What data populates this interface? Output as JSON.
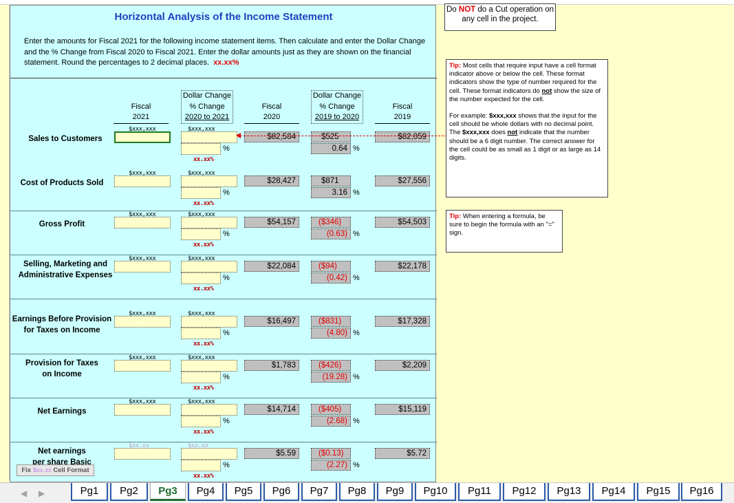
{
  "title": "Horizontal Analysis of the Income Statement",
  "instructions": "Enter the amounts for Fiscal 2021 for the following income statement items.  Then calculate and enter the Dollar Change and the % Change from Fiscal 2020 to Fiscal 2021.  Enter the dollar amounts just as they are shown on the financial statement.  Round the percentages to 2 decimal places.",
  "instructions_pct": "xx.xx%",
  "headers": {
    "fiscal2021": [
      "Fiscal",
      "2021"
    ],
    "dc1": [
      "Dollar Change",
      "% Change",
      "2020 to 2021"
    ],
    "fiscal2020": [
      "Fiscal",
      "2020"
    ],
    "dc2": [
      "Dollar Change",
      "% Change",
      "2019 to 2020"
    ],
    "fiscal2019": [
      "Fiscal",
      "2019"
    ]
  },
  "formats": {
    "dollar": "$xxx,xxx",
    "pct": "xx.xx%",
    "pct_sign": "%"
  },
  "rows": [
    {
      "label": [
        "Sales to Customers"
      ],
      "f2020": "$82,584",
      "chg": "$525",
      "pct": "0.64",
      "f2019": "$82,059",
      "neg": false
    },
    {
      "label": [
        "Cost of Products Sold"
      ],
      "f2020": "$28,427",
      "chg": "$871",
      "pct": "3.16",
      "f2019": "$27,556",
      "neg": false
    },
    {
      "label": [
        "Gross Profit"
      ],
      "f2020": "$54,157",
      "chg": "($346)",
      "pct": "(0.63)",
      "f2019": "$54,503",
      "neg": true
    },
    {
      "label": [
        "Selling, Marketing and",
        "Administrative Expenses"
      ],
      "f2020": "$22,084",
      "chg": "($94)",
      "pct": "(0.42)",
      "f2019": "$22,178",
      "neg": true
    },
    {
      "label": [
        "Earnings Before Provision",
        "for Taxes on Income"
      ],
      "f2020": "$16,497",
      "chg": "($831)",
      "pct": "(4.80)",
      "f2019": "$17,328",
      "neg": true
    },
    {
      "label": [
        "Provision for Taxes",
        "on Income"
      ],
      "f2020": "$1,783",
      "chg": "($426)",
      "pct": "(19.28)",
      "f2019": "$2,209",
      "neg": true
    },
    {
      "label": [
        "Net Earnings"
      ],
      "f2020": "$14,714",
      "chg": "($405)",
      "pct": "(2.68)",
      "f2019": "$15,119",
      "neg": true
    },
    {
      "label": [
        "Net earnings",
        "per share Basic"
      ],
      "f2020": "$5.59",
      "chg": "($0.13)",
      "pct": "(2.27)",
      "f2019": "$5.72",
      "neg": true
    }
  ],
  "last_row_format": "$xx.xx",
  "notice": {
    "pre": "Do ",
    "bold": "NOT",
    "post": " do a Cut operation on any cell in the project."
  },
  "tip1": {
    "label": "Tip:",
    "text1": " Most cells that require input have a cell format indicator above or below the cell.  These format indicators show the type of number required for the cell.  These format indicators do ",
    "bold1": "not",
    "text2": " show the size of the number expected for the cell.",
    "ex1": "For example: ",
    "exb1": "$xxx,xxx",
    "ex2": " shows that the input for the cell should be whole dollars with no decimal point.  The ",
    "exb2": "$xxx,xxx",
    "ex3": " does ",
    "exb3": "not",
    "ex4": " indicate that the number should be a 6 digit number.  The correct answer for the cell could be as small as 1 digit or as large as 14 digits."
  },
  "tip2": {
    "label": "Tip:",
    "text": " When entering a formula, be sure to begin the formula with an \"=\" sign."
  },
  "fix_button": {
    "fmt": "$xx.xx",
    "label": " Cell Format",
    "prefix": "Fix "
  },
  "tabs": [
    "Pg1",
    "Pg2",
    "Pg3",
    "Pg4",
    "Pg5",
    "Pg6",
    "Pg7",
    "Pg8",
    "Pg9",
    "Pg10",
    "Pg11",
    "Pg12",
    "Pg13",
    "Pg14",
    "Pg15",
    "Pg16"
  ],
  "active_tab": "Pg3",
  "nav": {
    "prev": "◀",
    "next": "▶"
  }
}
